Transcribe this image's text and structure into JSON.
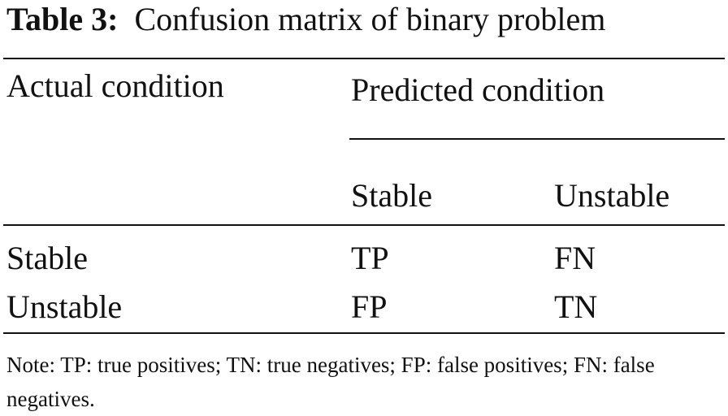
{
  "caption": {
    "label": "Table 3:",
    "text": "Confusion matrix of binary problem"
  },
  "table": {
    "header": {
      "actual": "Actual condition",
      "predicted": "Predicted condition"
    },
    "subheaders": [
      "Stable",
      "Unstable"
    ],
    "rows": [
      [
        "Stable",
        "TP",
        "FN"
      ],
      [
        "Unstable",
        "FP",
        "TN"
      ]
    ]
  },
  "note": "Note: TP: true positives; TN: true negatives; FP: false positives; FN: false negatives."
}
